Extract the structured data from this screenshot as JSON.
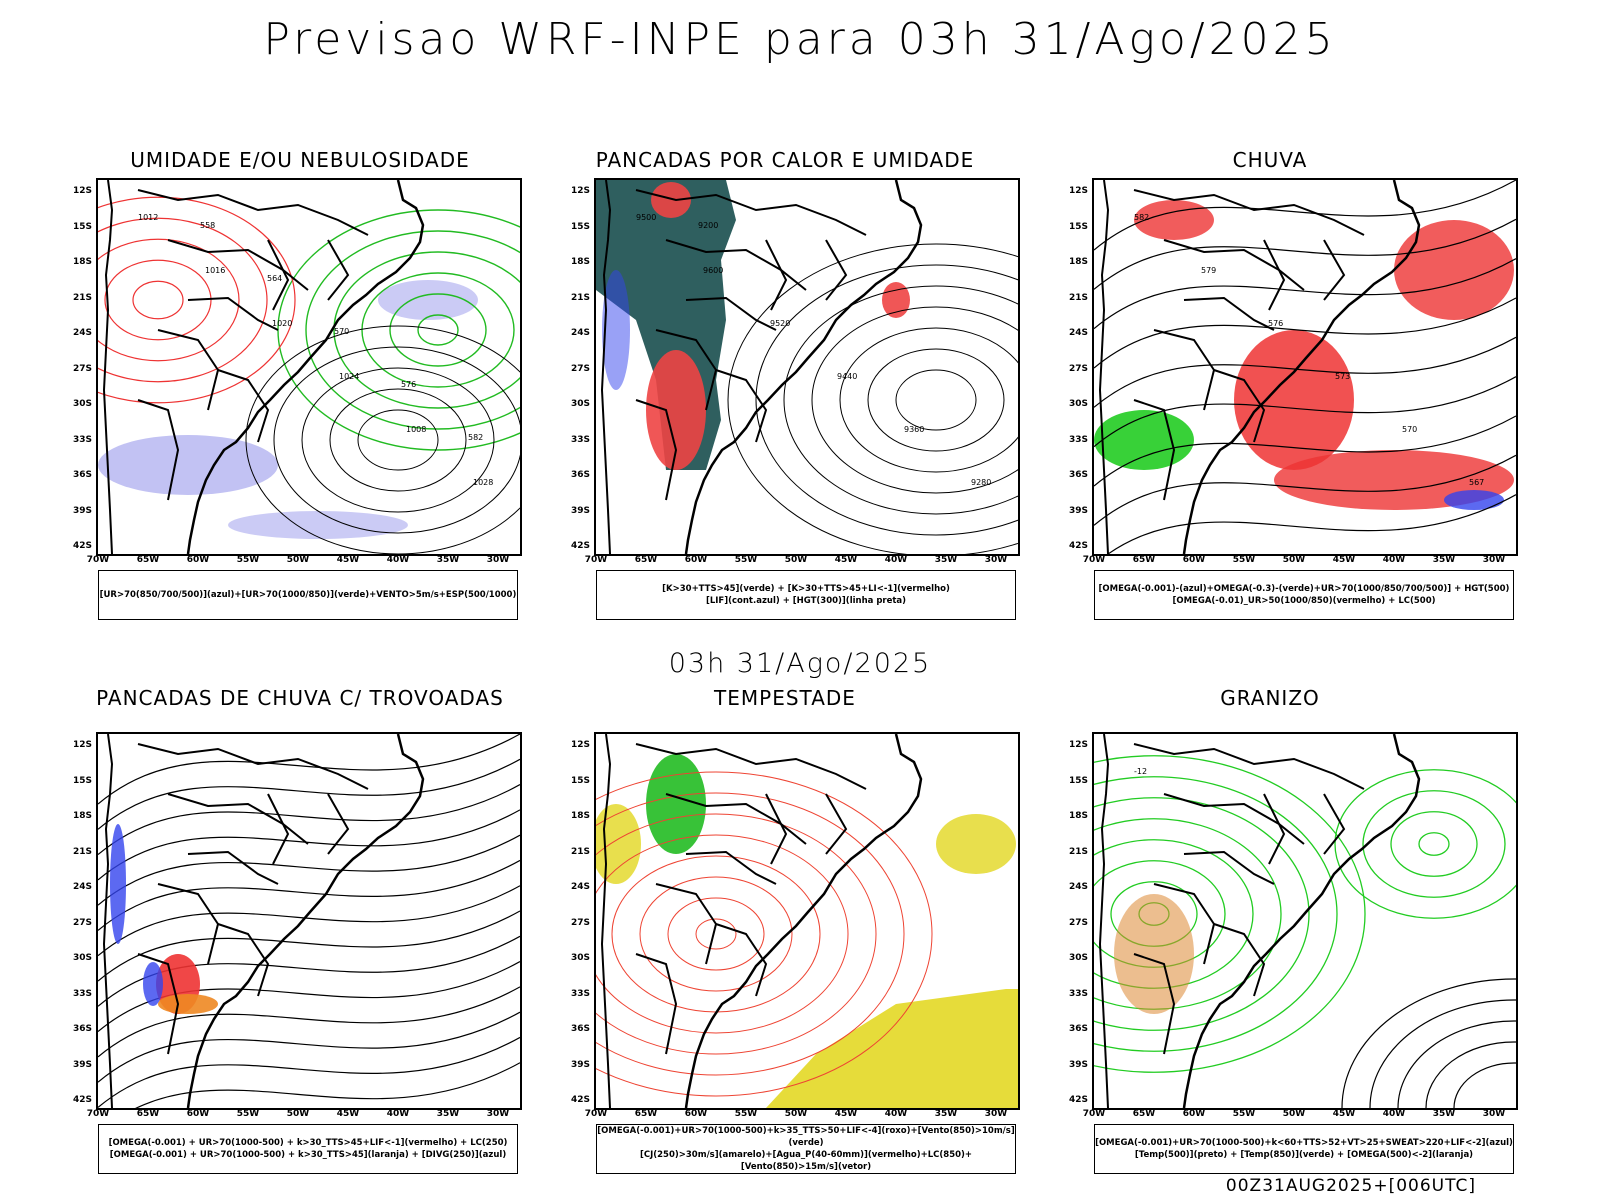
{
  "title": "Previsao WRF-INPE  para 03h 31/Ago/2025",
  "mid_time": "03h 31/Ago/2025",
  "footer": "00Z31AUG2025+[006UTC]",
  "lat_ticks": [
    "12S",
    "15S",
    "18S",
    "21S",
    "24S",
    "27S",
    "30S",
    "33S",
    "36S",
    "39S",
    "42S"
  ],
  "lon_ticks": [
    "70W",
    "65W",
    "60W",
    "55W",
    "50W",
    "45W",
    "40W",
    "35W",
    "30W"
  ],
  "panels": [
    {
      "title": "UMIDADE E/OU NEBULOSIDADE",
      "legend": [
        "[UR>70(850/700/500)](azul)+[UR>70(1000/850)](verde)+VENTO>5m/s+ESP(500/1000)"
      ],
      "colors": {
        "fill_primary": "#a8a8ee",
        "line_primary": "#22bb22",
        "line_secondary": "#ee3333"
      },
      "contour_labels": [
        "1012",
        "1016",
        "1020",
        "1024",
        "1008",
        "1028",
        "558",
        "564",
        "570",
        "576",
        "582"
      ]
    },
    {
      "title": "PANCADAS POR CALOR E UMIDADE",
      "legend": [
        "[K>30+TTS>45](verde) + [K>30+TTS>45+LI<-1](vermelho)",
        "[LIF](cont.azul) + [HGT(300)](linha preta)"
      ],
      "colors": {
        "fill_primary": "#2f5f5f",
        "fill_secondary": "#ee4444",
        "line_primary": "#3344ee"
      },
      "contour_labels": [
        "9500",
        "9600",
        "9520",
        "9440",
        "9360",
        "9280",
        "9200"
      ]
    },
    {
      "title": "CHUVA",
      "legend": [
        "[OMEGA(-0.001)-(azul)+OMEGA(-0.3)-(verde)+UR>70(1000/850/700/500)] + HGT(500)",
        "[OMEGA(-0.01)_UR>50(1000/850)(vermelho) + LC(500)"
      ],
      "colors": {
        "fill_primary": "#ee3333",
        "fill_secondary": "#22cc22",
        "fill_tertiary": "#3344ee"
      },
      "contour_labels": [
        "582",
        "579",
        "576",
        "573",
        "570",
        "567"
      ]
    },
    {
      "title": "PANCADAS DE CHUVA C/ TROVOADAS",
      "legend": [
        "[OMEGA(-0.001) + UR>70(1000-500) + k>30_TTS>45+LIF<-1](vermelho) + LC(250)",
        "[OMEGA(-0.001) + UR>70(1000-500) + k>30_TTS>45](laranja) + [DIVG(250)](azul)"
      ],
      "colors": {
        "fill_primary": "#ee3333",
        "fill_secondary": "#ee8822",
        "fill_tertiary": "#3344ee"
      },
      "contour_labels": []
    },
    {
      "title": "TEMPESTADE",
      "legend": [
        "[OMEGA(-0.001)+UR>70(1000-500)+k>35_TTS>50+LIF<-4](roxo)+[Vento(850)>10m/s](verde)",
        "[CJ(250)>30m/s](amarelo)+[Agua_P(40-60mm)](vermelho)+LC(850)+[Vento(850)>15m/s](vetor)"
      ],
      "colors": {
        "fill_primary": "#e6dc3a",
        "fill_secondary": "#22bb22",
        "line_primary": "#ee4433"
      },
      "contour_labels": []
    },
    {
      "title": "GRANIZO",
      "legend": [
        "[OMEGA(-0.001)+UR>70(1000-500)+k<60+TTS>52+VT>25+SWEAT>220+LIF<-2](azul)",
        "[Temp(500)](preto) + [Temp(850)](verde) + [OMEGA(500)<-2](laranja)"
      ],
      "colors": {
        "line_primary": "#22cc22",
        "fill_secondary": "#dd8833"
      },
      "contour_labels": [
        "-12"
      ]
    }
  ]
}
